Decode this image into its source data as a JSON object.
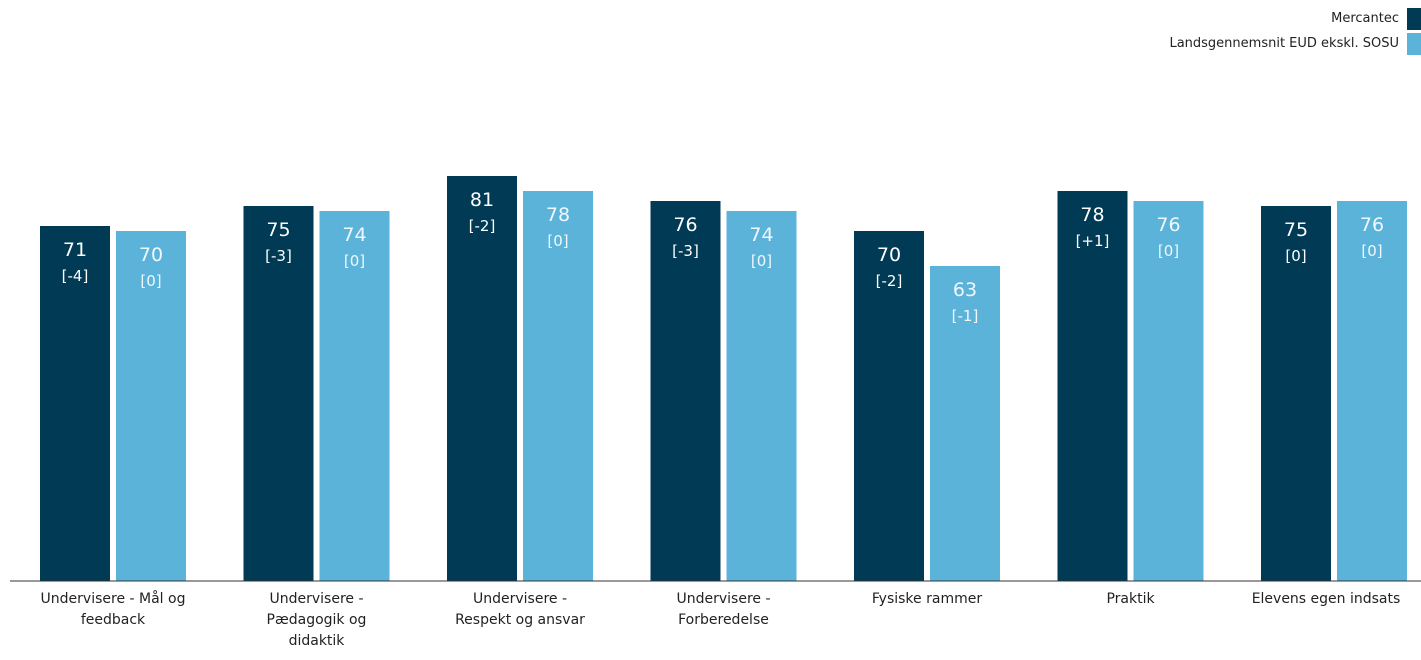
{
  "chart_data": {
    "type": "bar",
    "categories": [
      "Undervisere - Mål og feedback",
      "Undervisere - Pædagogik og didaktik",
      "Undervisere - Respekt og ansvar",
      "Undervisere - Forberedelse",
      "Fysiske rammer",
      "Praktik",
      "Elevens egen indsats"
    ],
    "category_lines": [
      [
        "Undervisere - Mål og",
        "feedback"
      ],
      [
        "Undervisere -",
        "Pædagogik og",
        "didaktik"
      ],
      [
        "Undervisere -",
        "Respekt og ansvar"
      ],
      [
        "Undervisere -",
        "Forberedelse"
      ],
      [
        "Fysiske rammer"
      ],
      [
        "Praktik"
      ],
      [
        "Elevens egen indsats"
      ]
    ],
    "series": [
      {
        "name": "Mercantec",
        "color": "#003a54",
        "values": [
          71,
          75,
          81,
          76,
          70,
          78,
          75
        ],
        "changes": [
          "[-4]",
          "[-3]",
          "[-2]",
          "[-3]",
          "[-2]",
          "[+1]",
          "[0]"
        ]
      },
      {
        "name": "Landsgennemsnit EUD ekskl. SOSU",
        "color": "#5cb3da",
        "values": [
          70,
          74,
          78,
          74,
          63,
          76,
          76
        ],
        "changes": [
          "[0]",
          "[0]",
          "[0]",
          "[0]",
          "[-1]",
          "[0]",
          "[0]"
        ]
      }
    ],
    "legend_position": "top-right",
    "grid": false
  }
}
